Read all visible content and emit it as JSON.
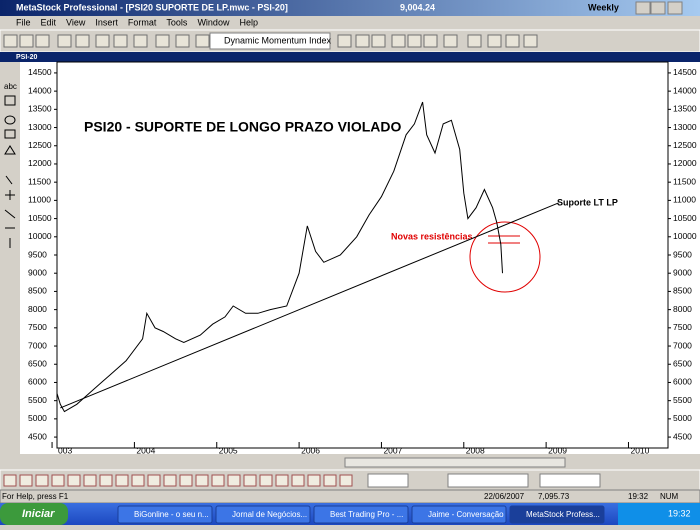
{
  "title_bar": {
    "app": "MetaStock Professional - [PSI20 SUPORTE DE LP.mwc - PSI-20]",
    "value": "9,004.24",
    "period": "Weekly"
  },
  "menu": [
    "File",
    "Edit",
    "View",
    "Insert",
    "Format",
    "Tools",
    "Window",
    "Help"
  ],
  "toolbar": {
    "indicator": "Dynamic Momentum Index",
    "left_tool": "abc"
  },
  "chart_data": {
    "type": "line",
    "window_title": "PSI-20",
    "title": "PSI20 - SUPORTE DE LONGO PRAZO VIOLADO",
    "annotations": [
      "Suporte LT LP",
      "Novas resistências"
    ],
    "xlim": [
      2003.06,
      2010.48
    ],
    "xticks": [
      {
        "value": 2003,
        "label": "003"
      },
      2004,
      2005,
      2006,
      2007,
      2008,
      2009,
      2010
    ],
    "ylim": [
      4200,
      14800
    ],
    "yticks": [
      4500,
      5000,
      5500,
      6000,
      6500,
      7000,
      7500,
      8000,
      8500,
      9000,
      9500,
      10000,
      10500,
      11000,
      11500,
      12000,
      12500,
      13000,
      13500,
      14000,
      14500
    ],
    "series": [
      {
        "name": "PSI-20",
        "color": "#000000",
        "x": [
          2003.06,
          2003.1,
          2003.15,
          2003.3,
          2003.5,
          2003.7,
          2003.9,
          2004.1,
          2004.15,
          2004.25,
          2004.35,
          2004.5,
          2004.6,
          2004.8,
          2004.95,
          2005.1,
          2005.2,
          2005.35,
          2005.5,
          2005.65,
          2005.85,
          2006.0,
          2006.1,
          2006.2,
          2006.3,
          2006.5,
          2006.7,
          2006.85,
          2007.0,
          2007.15,
          2007.3,
          2007.4,
          2007.5,
          2007.55,
          2007.65,
          2007.75,
          2007.85,
          2007.95,
          2008.0,
          2008.05,
          2008.15,
          2008.25,
          2008.35,
          2008.4,
          2008.45,
          2008.47
        ],
        "values": [
          5700,
          5400,
          5200,
          5400,
          5800,
          6200,
          6600,
          7200,
          7900,
          7500,
          7400,
          7200,
          7100,
          7300,
          7600,
          7800,
          8100,
          7900,
          7900,
          8000,
          8100,
          9000,
          10300,
          9600,
          9300,
          9500,
          10000,
          10600,
          11100,
          11800,
          12800,
          13100,
          13700,
          12800,
          12300,
          13100,
          13200,
          12400,
          11200,
          10500,
          10800,
          11300,
          10800,
          10400,
          9800,
          9000
        ]
      }
    ],
    "trendline": {
      "x": [
        2003.1,
        2009.15
      ],
      "values": [
        5300,
        10930
      ]
    }
  },
  "status_bar": {
    "help": "For Help, press F1",
    "date": "22/06/2007",
    "price": "7,095.73",
    "time": "19:32",
    "mode": "NUM"
  },
  "taskbar": {
    "start": "Iniciar",
    "items": [
      "BiGonline - o seu n...",
      "Jornal de Negócios...",
      "Best Trading Pro - ...",
      "Jaime - Conversação",
      "MetaStock Profess..."
    ],
    "clock": "19:32"
  }
}
